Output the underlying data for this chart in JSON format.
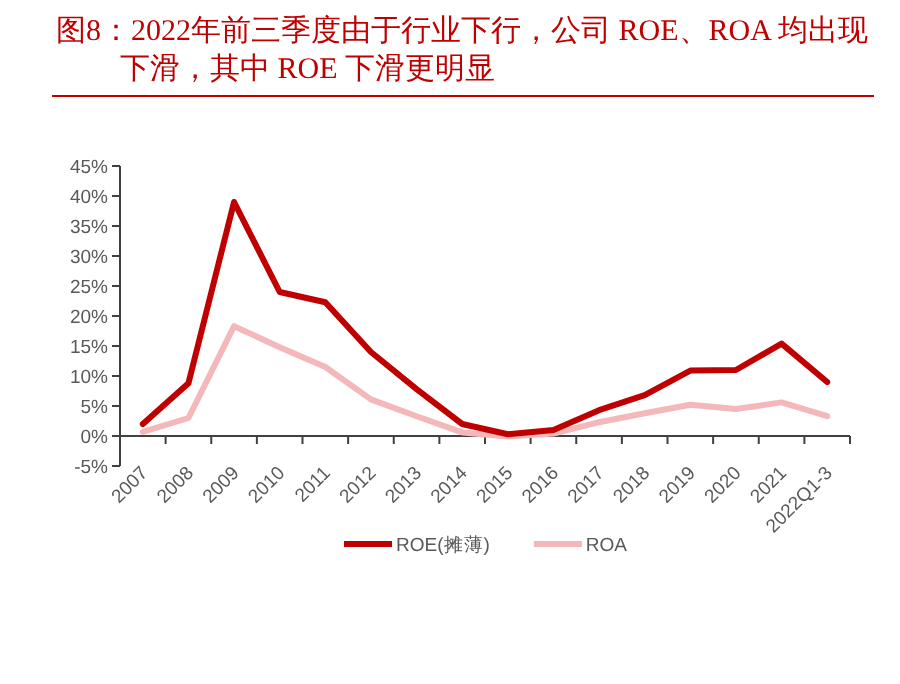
{
  "chart_data": {
    "type": "line",
    "title": "图8：2022年前三季度由于行业下行，公司 ROE、ROA 均出现下滑，其中 ROE 下滑更明显",
    "categories": [
      "2007",
      "2008",
      "2009",
      "2010",
      "2011",
      "2012",
      "2013",
      "2014",
      "2015",
      "2016",
      "2017",
      "2018",
      "2019",
      "2020",
      "2021",
      "2022Q1-3"
    ],
    "series": [
      {
        "name": "ROE(摊薄)",
        "color": "#c00000",
        "values": [
          2,
          8.8,
          39,
          24,
          22.3,
          14,
          7.8,
          2,
          0.3,
          1,
          4.3,
          6.8,
          10.9,
          11,
          15.4,
          9
        ]
      },
      {
        "name": "ROA",
        "color": "#f4b8bb",
        "values": [
          0.7,
          3,
          18.3,
          14.8,
          11.5,
          6.1,
          3.3,
          0.6,
          -0.1,
          0.4,
          2.3,
          3.8,
          5.2,
          4.5,
          5.6,
          3.3
        ]
      }
    ],
    "ylim": [
      -5,
      45
    ],
    "yticks": [
      {
        "value": -5,
        "label": "-5%"
      },
      {
        "value": 0,
        "label": "0%"
      },
      {
        "value": 5,
        "label": "5%"
      },
      {
        "value": 10,
        "label": "10%"
      },
      {
        "value": 15,
        "label": "15%"
      },
      {
        "value": 20,
        "label": "20%"
      },
      {
        "value": 25,
        "label": "25%"
      },
      {
        "value": 30,
        "label": "30%"
      },
      {
        "value": 35,
        "label": "35%"
      },
      {
        "value": 40,
        "label": "40%"
      },
      {
        "value": 45,
        "label": "45%"
      }
    ],
    "grid": false,
    "legend": "bottom",
    "marker": "none",
    "line_style": "solid"
  }
}
